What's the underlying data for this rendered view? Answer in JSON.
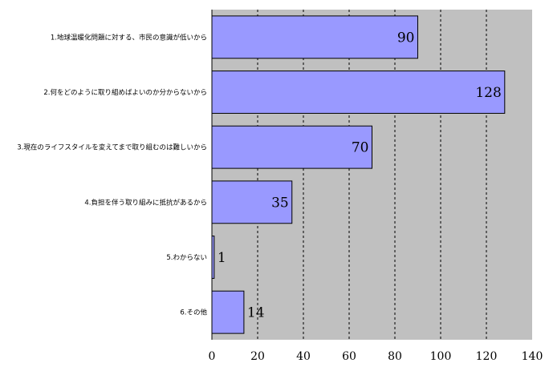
{
  "chart_data": {
    "type": "bar",
    "orientation": "horizontal",
    "categories": [
      "1.地球温暖化問題に対する、市民の意識が低いから",
      "2.何をどのように取り組めばよいのか分からないから",
      "3.現在のライフスタイルを変えてまで取り組むのは難しいから",
      "4.負担を伴う取り組みに抵抗があるから",
      "5.わからない",
      "6.その他"
    ],
    "values": [
      90,
      128,
      70,
      35,
      1,
      14
    ],
    "value_labels": [
      "90",
      "128",
      "70",
      "35",
      "1",
      "14"
    ],
    "title": "",
    "xlabel": "",
    "ylabel": "",
    "xlim": [
      0,
      140
    ],
    "x_ticks": [
      0,
      20,
      40,
      60,
      80,
      100,
      120,
      140
    ],
    "x_tick_labels": [
      "0",
      "20",
      "40",
      "60",
      "80",
      "100",
      "120",
      "140"
    ],
    "grid": "vertical dashed",
    "legend": "none",
    "colors": {
      "plot_background": "#c0c0c0",
      "bar_fill": "#9999ff",
      "bar_stroke": "#000000",
      "grid": "#000000"
    }
  }
}
